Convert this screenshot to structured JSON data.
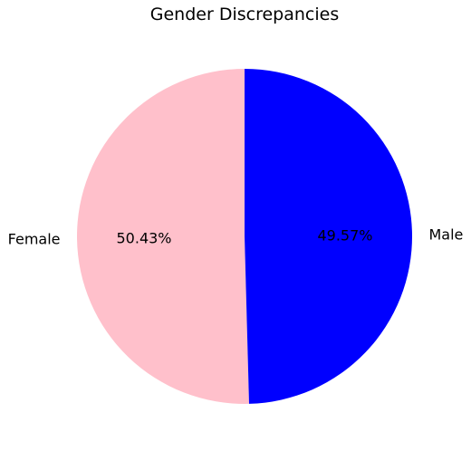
{
  "chart_data": {
    "type": "pie",
    "title": "Gender Discrepancies",
    "slices": [
      {
        "label": "Female",
        "value": 50.43,
        "pct_label": "50.43%",
        "color": "#ffc0cb"
      },
      {
        "label": "Male",
        "value": 49.57,
        "pct_label": "49.57%",
        "color": "#0000ff"
      }
    ],
    "start_angle_deg": 90,
    "direction": "counterclockwise",
    "legend": "none"
  }
}
